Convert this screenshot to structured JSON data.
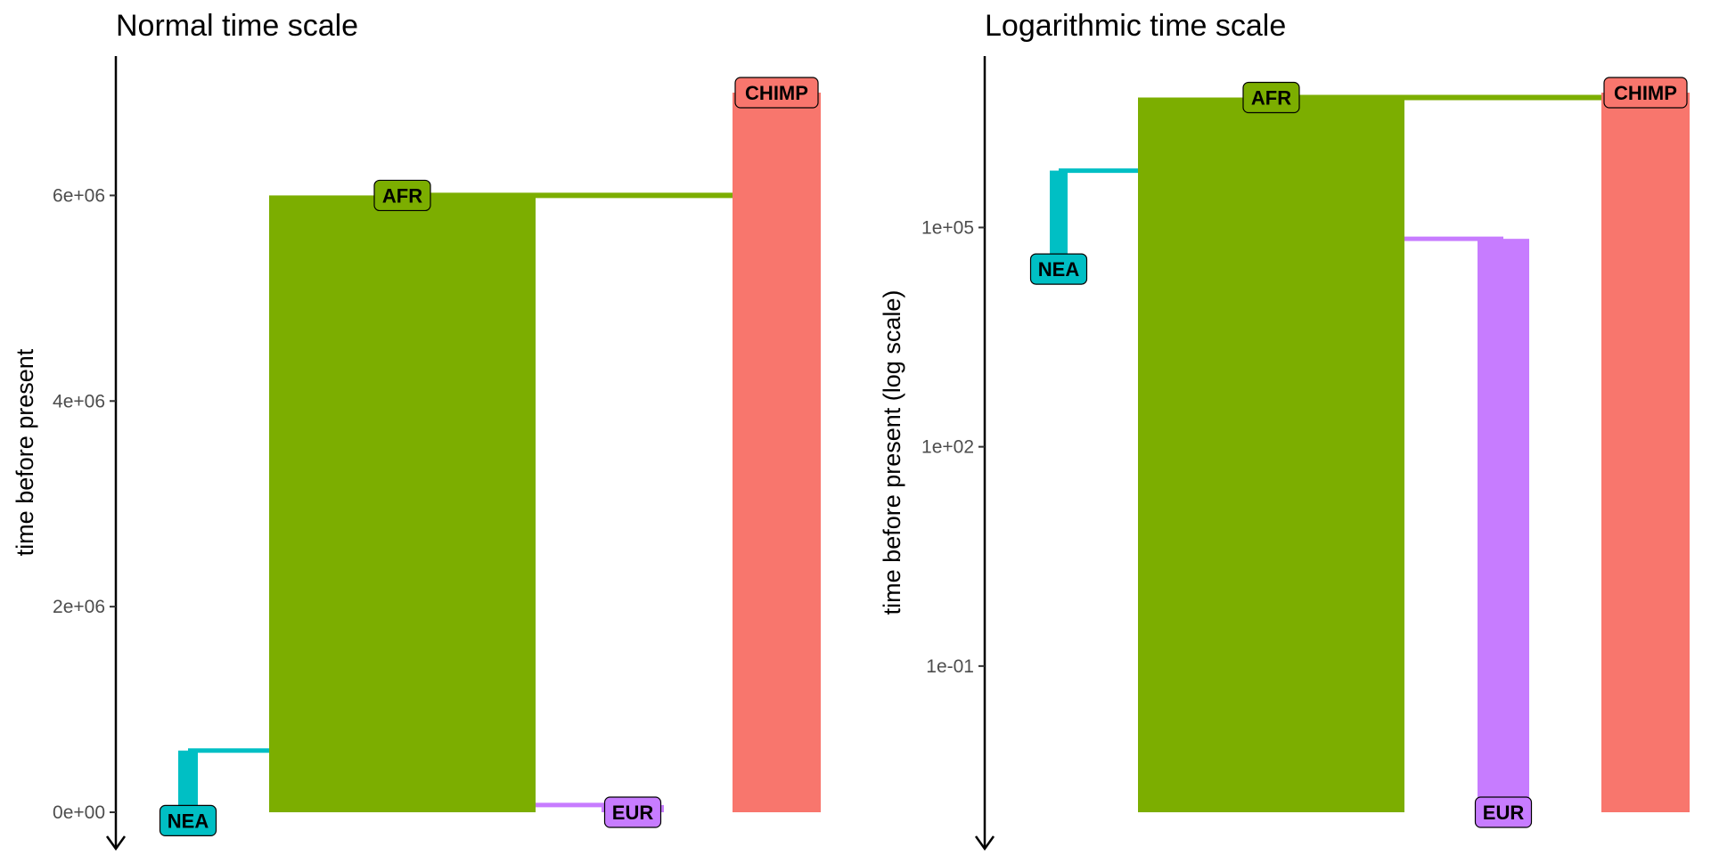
{
  "chart_data": [
    {
      "type": "tree",
      "title": "Normal time scale",
      "ylabel": "time before present",
      "scale": "linear",
      "ylim": [
        0,
        7000000
      ],
      "yticks": [
        {
          "value": 0,
          "label": "0e+00"
        },
        {
          "value": 2000000,
          "label": "2e+06"
        },
        {
          "value": 4000000,
          "label": "4e+06"
        },
        {
          "value": 6000000,
          "label": "6e+06"
        }
      ],
      "populations": [
        {
          "name": "CHIMP",
          "start_time": 7000000,
          "end_time": 0,
          "color": "#F8766D"
        },
        {
          "name": "AFR",
          "start_time": 6000000,
          "end_time": 0,
          "parent": "CHIMP",
          "color": "#7CAE00"
        },
        {
          "name": "NEA",
          "start_time": 600000,
          "end_time": 40000,
          "parent": "AFR",
          "color": "#00BFC4"
        },
        {
          "name": "EUR",
          "start_time": 70000,
          "end_time": 0,
          "parent": "AFR",
          "color": "#C77CFF"
        }
      ],
      "grid": false,
      "legend": "none"
    },
    {
      "type": "tree",
      "title": "Logarithmic time scale",
      "ylabel": "time before present (log scale)",
      "scale": "log",
      "ylim": [
        0.001,
        7000000
      ],
      "yticks": [
        {
          "value": 0.1,
          "label": "1e-01"
        },
        {
          "value": 100,
          "label": "1e+02"
        },
        {
          "value": 100000,
          "label": "1e+05"
        }
      ],
      "populations": [
        {
          "name": "CHIMP",
          "start_time": 7000000,
          "end_time": 0.001,
          "color": "#F8766D"
        },
        {
          "name": "AFR",
          "start_time": 6000000,
          "end_time": 0.001,
          "parent": "CHIMP",
          "color": "#7CAE00"
        },
        {
          "name": "NEA",
          "start_time": 600000,
          "end_time": 40000,
          "parent": "AFR",
          "color": "#00BFC4"
        },
        {
          "name": "EUR",
          "start_time": 70000,
          "end_time": 0.001,
          "parent": "AFR",
          "color": "#C77CFF"
        }
      ],
      "grid": false,
      "legend": "none"
    }
  ]
}
